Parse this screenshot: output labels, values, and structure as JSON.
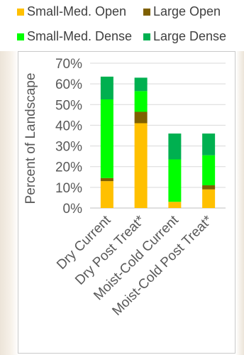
{
  "chart_data": {
    "type": "bar",
    "stacked": true,
    "title": "",
    "xlabel": "",
    "ylabel": "Percent of Landscape",
    "ylim": [
      0,
      70
    ],
    "yticks": [
      "0%",
      "10%",
      "20%",
      "30%",
      "40%",
      "50%",
      "60%",
      "70%"
    ],
    "grid": true,
    "legend_position": "top",
    "categories": [
      "Dry Current",
      "Dry Post Treat*",
      "Moist-Cold Current",
      "Moist-Cold Post Treat*"
    ],
    "series": [
      {
        "name": "Small-Med. Open",
        "color": "#ffc000",
        "values": [
          13,
          41,
          3,
          9
        ]
      },
      {
        "name": "Large Open",
        "color": "#7f6000",
        "values": [
          1.5,
          5.5,
          0,
          2
        ]
      },
      {
        "name": "Small-Med. Dense",
        "color": "#00ff00",
        "values": [
          38,
          10,
          20.5,
          14.5
        ]
      },
      {
        "name": "Large Dense",
        "color": "#00b050",
        "values": [
          11,
          6.5,
          12.5,
          10.5
        ]
      }
    ]
  }
}
